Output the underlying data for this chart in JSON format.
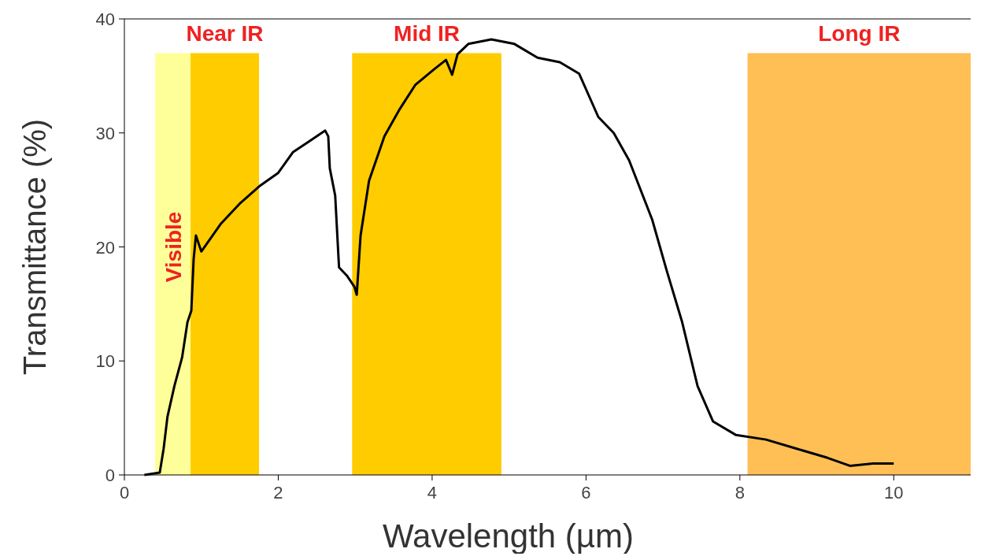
{
  "chart_data": {
    "type": "line",
    "xlabel": "Wavelength (µm)",
    "ylabel": "Transmittance (%)",
    "x": [
      0.26,
      0.46,
      0.51,
      0.56,
      0.65,
      0.75,
      0.82,
      0.87,
      0.9,
      0.93,
      1.0,
      1.25,
      1.5,
      1.75,
      2.0,
      2.19,
      2.39,
      2.61,
      2.65,
      2.67,
      2.74,
      2.79,
      2.89,
      2.99,
      3.02,
      3.07,
      3.18,
      3.38,
      3.58,
      3.78,
      4.03,
      4.18,
      4.26,
      4.33,
      4.47,
      4.77,
      5.07,
      5.37,
      5.66,
      5.91,
      6.16,
      6.36,
      6.56,
      6.86,
      7.05,
      7.25,
      7.45,
      7.65,
      7.95,
      8.34,
      8.74,
      9.14,
      9.43,
      9.73,
      10.0
    ],
    "series": [
      {
        "color": "#000000",
        "values": [
          0,
          0.2,
          2.3,
          5.1,
          7.8,
          10.3,
          13.4,
          14.4,
          18.9,
          21.0,
          19.6,
          22.0,
          23.8,
          25.3,
          26.5,
          28.3,
          29.2,
          30.2,
          29.7,
          26.9,
          24.5,
          18.2,
          17.5,
          16.5,
          15.8,
          21.0,
          25.8,
          29.7,
          32.1,
          34.2,
          35.6,
          36.4,
          35.1,
          36.9,
          37.8,
          38.2,
          37.8,
          36.6,
          36.2,
          35.2,
          31.4,
          30.0,
          27.6,
          22.4,
          17.9,
          13.4,
          7.8,
          4.7,
          3.5,
          3.1,
          2.3,
          1.5,
          0.8,
          1.0,
          1.0
        ]
      }
    ],
    "xlim": [
      0,
      11
    ],
    "xticks": [
      0,
      2,
      4,
      6,
      8,
      10
    ],
    "ylim": [
      0,
      40
    ],
    "yticks": [
      0,
      10,
      20,
      30,
      40
    ],
    "bands": [
      {
        "axis": "x",
        "from": 0.4,
        "to": 0.86,
        "label": "Visible",
        "color": "#ffff99"
      },
      {
        "axis": "x",
        "from": 0.86,
        "to": 1.75,
        "label": "Near IR",
        "color": "#ffcc00"
      },
      {
        "axis": "x",
        "from": 2.96,
        "to": 4.9,
        "label": "Mid IR",
        "color": "#ffcc00"
      },
      {
        "axis": "x",
        "from": 8.1,
        "to": 11,
        "label": "Long IR",
        "color": "#ffbf55"
      }
    ]
  }
}
